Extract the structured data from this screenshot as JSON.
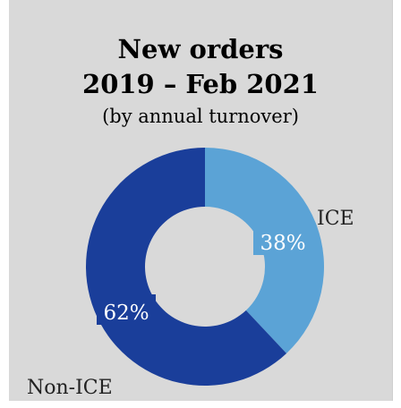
{
  "chart_data": {
    "type": "pie",
    "title_line1": "New orders",
    "title_line2": "2019 – Feb 2021",
    "subtitle": "(by annual turnover)",
    "categories": [
      "ICE",
      "Non-ICE"
    ],
    "values": [
      38,
      62
    ],
    "data_labels": [
      "38%",
      "62%"
    ],
    "colors": [
      "#5ba3d6",
      "#1a3e9a"
    ],
    "donut": true
  }
}
